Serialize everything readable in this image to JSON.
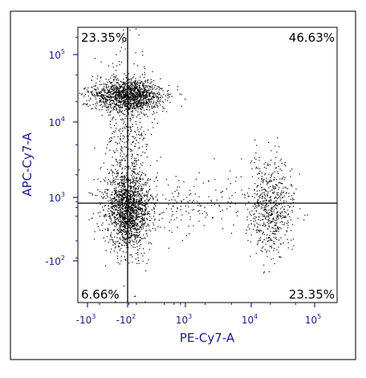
{
  "chart_data": {
    "type": "scatter",
    "xlabel": "PE-Cy7-A",
    "ylabel": "APC-Cy7-A",
    "x_scale": "biexponential",
    "y_scale": "biexponential",
    "x_tick_labels": [
      {
        "value": -1000,
        "base": "-10",
        "exp": "3"
      },
      {
        "value": -100,
        "base": "-10",
        "exp": "2"
      },
      {
        "value": 1000,
        "base": "10",
        "exp": "3"
      },
      {
        "value": 10000,
        "base": "10",
        "exp": "4"
      },
      {
        "value": 100000,
        "base": "10",
        "exp": "5"
      }
    ],
    "y_tick_labels": [
      {
        "value": -100,
        "base": "-10",
        "exp": "2"
      },
      {
        "value": 1000,
        "base": "10",
        "exp": "3"
      },
      {
        "value": 10000,
        "base": "10",
        "exp": "4"
      },
      {
        "value": 100000,
        "base": "10",
        "exp": "5"
      }
    ],
    "quadrant_gate": {
      "x": -100,
      "y": 400
    },
    "quadrants": {
      "upper_left": "23.35%",
      "upper_right": "46.63%",
      "lower_left": "6.66%",
      "lower_right": "23.35%"
    },
    "populations": [
      {
        "x_center": -80,
        "y_center": 25000,
        "density": "high"
      },
      {
        "x_center": -90,
        "y_center": 3000,
        "density": "medium"
      },
      {
        "x_center": -100,
        "y_center": 150,
        "density": "high"
      },
      {
        "x_center": 800,
        "y_center": 300,
        "density": "low"
      },
      {
        "x_center": 20000,
        "y_center": 250,
        "density": "medium"
      }
    ],
    "grid": false,
    "legend": "none",
    "colors": {
      "points": "#000000",
      "axis_text": "#1a1a8c",
      "gate": "#000000"
    }
  }
}
